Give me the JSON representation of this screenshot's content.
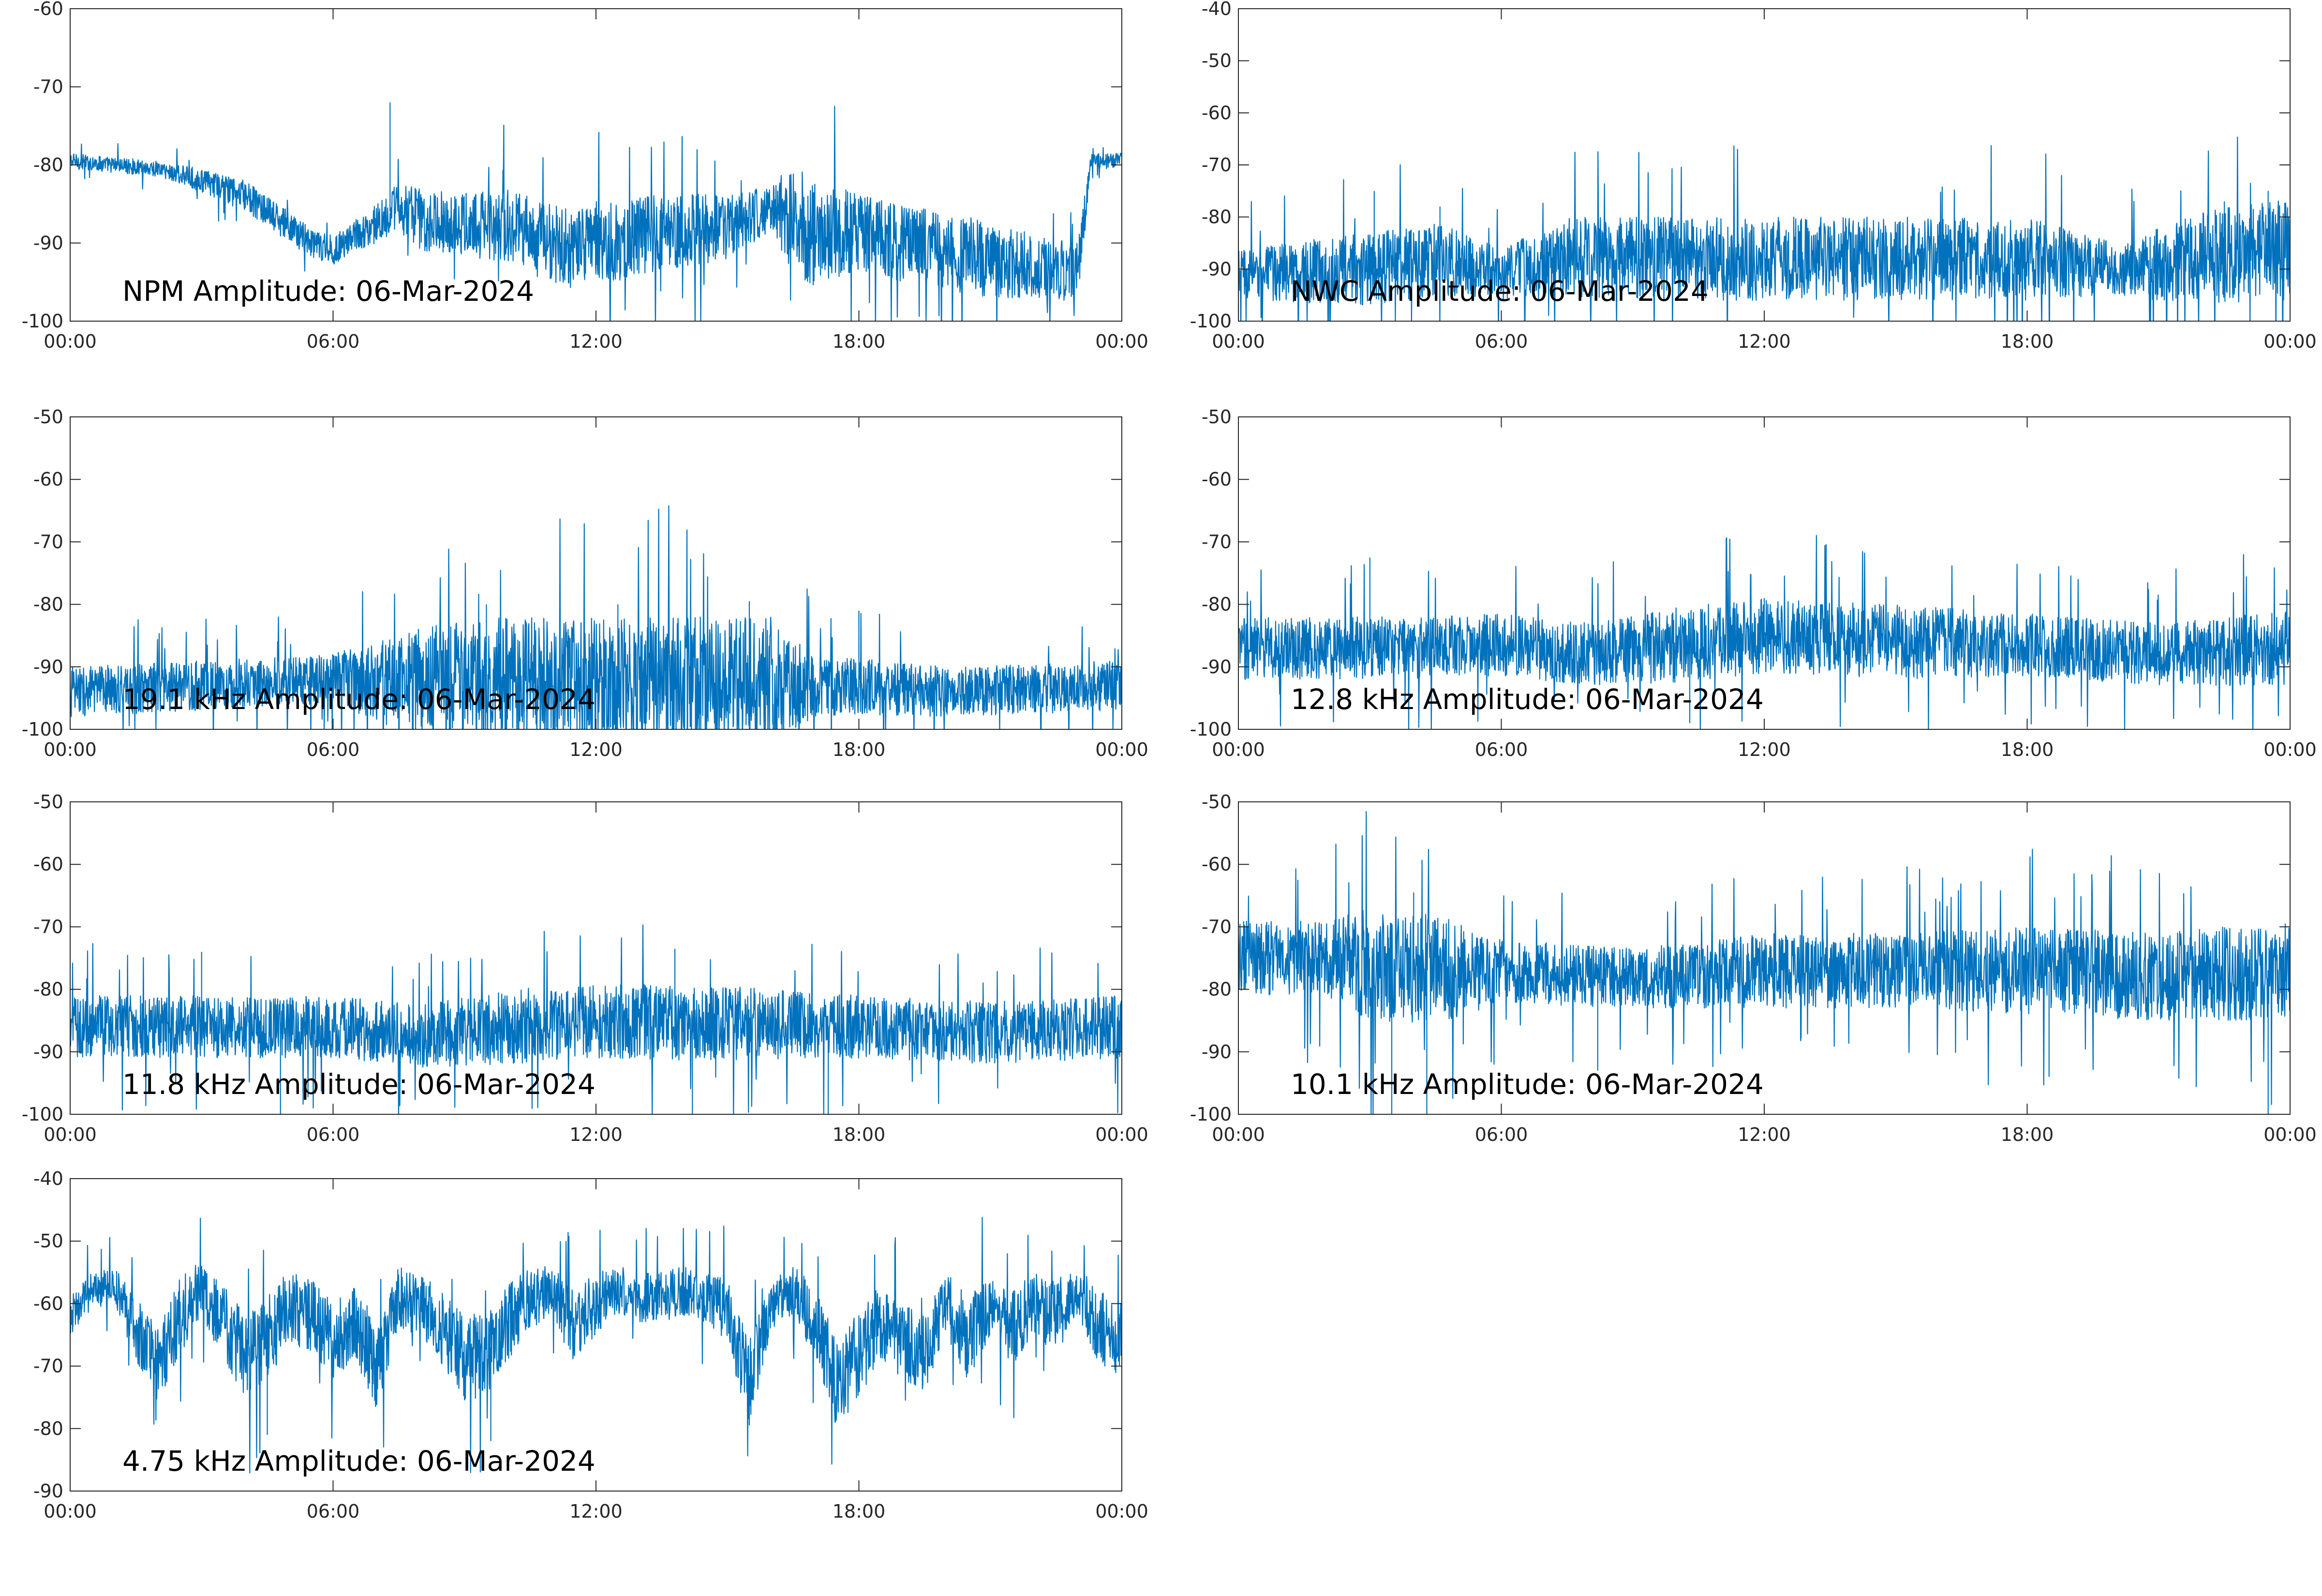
{
  "figure": {
    "line_color": "#0072BD",
    "axes_color": "#262626",
    "background": "#ffffff"
  },
  "chart_data": [
    {
      "type": "line",
      "title": "NPM Amplitude: 06-Mar-2024",
      "xlabel": "",
      "ylabel": "",
      "xlim": [
        0,
        24
      ],
      "ylim": [
        -100,
        -60
      ],
      "x_ticks": [
        "00:00",
        "06:00",
        "12:00",
        "18:00",
        "00:00"
      ],
      "y_ticks": [
        "-60",
        "-70",
        "-80",
        "-90",
        "-100"
      ],
      "series": [
        {
          "x": [
            0,
            1,
            2,
            3,
            4,
            5,
            5.5,
            6,
            6.5,
            7,
            7.3,
            7.5,
            8,
            9,
            10,
            11,
            11.5,
            12,
            12.5,
            13,
            14,
            15,
            16,
            16.5,
            17,
            18,
            19,
            20,
            21,
            22,
            23,
            23.3,
            24
          ],
          "y": [
            -79.5,
            -80,
            -80.5,
            -82,
            -84,
            -88,
            -90,
            -91,
            -89,
            -87.5,
            -86,
            -85.5,
            -87,
            -87.5,
            -88,
            -90,
            -91,
            -89.5,
            -90,
            -89,
            -88.5,
            -88,
            -85.5,
            -87,
            -89,
            -88.5,
            -90,
            -91,
            -92,
            -93,
            -93.5,
            -79.5,
            -79.5
          ],
          "noise": [
            1,
            1,
            1,
            1.5,
            2,
            2,
            2,
            2,
            2,
            2.5,
            3,
            3,
            4,
            4,
            5,
            5,
            5,
            5,
            5,
            5,
            5,
            4,
            3,
            7,
            7,
            5,
            5,
            5,
            5,
            4,
            4,
            1,
            1
          ],
          "spikes": [
            [
              7.3,
              -72
            ]
          ]
        }
      ],
      "grid": false
    },
    {
      "type": "line",
      "title": "NWC Amplitude: 06-Mar-2024",
      "xlabel": "",
      "ylabel": "",
      "xlim": [
        0,
        24
      ],
      "ylim": [
        -100,
        -40
      ],
      "x_ticks": [
        "00:00",
        "06:00",
        "12:00",
        "18:00",
        "00:00"
      ],
      "y_ticks": [
        "-40",
        "-50",
        "-60",
        "-70",
        "-80",
        "-90",
        "-100"
      ],
      "series": [
        {
          "x": [
            0,
            3,
            4.5,
            6,
            7.5,
            9,
            12,
            15,
            18,
            20,
            22,
            24
          ],
          "y": [
            -91,
            -90,
            -88,
            -91,
            -88,
            -88,
            -88,
            -88,
            -88,
            -90,
            -88,
            -86
          ],
          "noise": [
            5,
            7,
            7,
            5,
            8,
            8,
            8,
            8,
            8,
            5,
            9,
            10
          ],
          "spikes": [
            [
              3.1,
              -75
            ],
            [
              4.6,
              -78
            ],
            [
              22.5,
              -77
            ],
            [
              23.5,
              -75
            ]
          ]
        }
      ],
      "grid": false
    },
    {
      "type": "line",
      "title": "19.1 kHz Amplitude: 06-Mar-2024",
      "xlabel": "",
      "ylabel": "",
      "xlim": [
        0,
        24
      ],
      "ylim": [
        -100,
        -50
      ],
      "x_ticks": [
        "00:00",
        "06:00",
        "12:00",
        "18:00",
        "00:00"
      ],
      "y_ticks": [
        "-50",
        "-60",
        "-70",
        "-80",
        "-90",
        "-100"
      ],
      "series": [
        {
          "x": [
            0,
            3,
            6,
            7.5,
            10,
            13,
            16,
            17,
            20,
            24
          ],
          "y": [
            -94,
            -93,
            -92,
            -92,
            -92,
            -92,
            -92,
            -93,
            -94,
            -93
          ],
          "noise": [
            4,
            4,
            4,
            8,
            10,
            10,
            10,
            5,
            4,
            4
          ],
          "spikes": [
            [
              9.5,
              -80
            ],
            [
              12.5,
              -80
            ],
            [
              15.5,
              -79.5
            ],
            [
              18,
              -81
            ]
          ]
        }
      ],
      "grid": false
    },
    {
      "type": "line",
      "title": "12.8 kHz Amplitude: 06-Mar-2024",
      "xlabel": "",
      "ylabel": "",
      "xlim": [
        0,
        24
      ],
      "ylim": [
        -100,
        -50
      ],
      "x_ticks": [
        "00:00",
        "06:00",
        "12:00",
        "18:00",
        "00:00"
      ],
      "y_ticks": [
        "-50",
        "-60",
        "-70",
        "-80",
        "-90",
        "-100"
      ],
      "series": [
        {
          "x": [
            0,
            3,
            6,
            8,
            10,
            12,
            15,
            18,
            21,
            24
          ],
          "y": [
            -87,
            -87,
            -86.5,
            -88,
            -86.5,
            -85,
            -86,
            -86.5,
            -88,
            -87
          ],
          "noise": [
            5,
            5,
            5,
            5,
            6,
            6,
            6,
            5,
            5,
            6
          ],
          "spikes": [
            [
              3,
              -72.5
            ],
            [
              12,
              -79
            ],
            [
              10.3,
              -99
            ]
          ]
        }
      ],
      "grid": false
    },
    {
      "type": "line",
      "title": "11.8 kHz Amplitude: 06-Mar-2024",
      "xlabel": "",
      "ylabel": "",
      "xlim": [
        0,
        24
      ],
      "ylim": [
        -100,
        -50
      ],
      "x_ticks": [
        "00:00",
        "06:00",
        "12:00",
        "18:00",
        "00:00"
      ],
      "y_ticks": [
        "-50",
        "-60",
        "-70",
        "-80",
        "-90",
        "-100"
      ],
      "series": [
        {
          "x": [
            0,
            3,
            6,
            8,
            10,
            12,
            15,
            18,
            21,
            24
          ],
          "y": [
            -86,
            -86,
            -86,
            -87.5,
            -86,
            -85,
            -85.5,
            -86,
            -87,
            -86
          ],
          "noise": [
            5,
            5,
            5,
            5,
            6,
            6,
            6,
            5,
            5,
            5
          ],
          "spikes": [
            [
              3,
              -74
            ],
            [
              13.8,
              -73.5
            ],
            [
              4.8,
              -100
            ],
            [
              14.2,
              -100
            ],
            [
              17.3,
              -100
            ]
          ]
        }
      ],
      "grid": false
    },
    {
      "type": "line",
      "title": "10.1 kHz Amplitude: 06-Mar-2024",
      "xlabel": "",
      "ylabel": "",
      "xlim": [
        0,
        24
      ],
      "ylim": [
        -100,
        -50
      ],
      "x_ticks": [
        "00:00",
        "06:00",
        "12:00",
        "18:00",
        "00:00"
      ],
      "y_ticks": [
        "-50",
        "-60",
        "-70",
        "-80",
        "-90",
        "-100"
      ],
      "series": [
        {
          "x": [
            0,
            2,
            3,
            4.5,
            6,
            8,
            10,
            12,
            15,
            18,
            21,
            24
          ],
          "y": [
            -75,
            -75,
            -76,
            -77,
            -77,
            -78,
            -78,
            -77,
            -77,
            -77,
            -78,
            -77
          ],
          "noise": [
            6,
            6,
            9,
            9,
            5,
            5,
            5,
            6,
            6,
            7,
            7,
            8
          ],
          "spikes": [
            [
              4,
              -64.5
            ],
            [
              3.5,
              -100
            ],
            [
              4.3,
              -100
            ],
            [
              8.2,
              -93
            ],
            [
              18.5,
              -94
            ],
            [
              23.5,
              -100
            ]
          ]
        }
      ],
      "grid": false
    },
    {
      "type": "line",
      "title": "4.75 kHz Amplitude: 06-Mar-2024",
      "xlabel": "",
      "ylabel": "",
      "xlim": [
        0,
        24
      ],
      "ylim": [
        -90,
        -40
      ],
      "x_ticks": [
        "00:00",
        "06:00",
        "12:00",
        "18:00",
        "00:00"
      ],
      "y_ticks": [
        "-40",
        "-50",
        "-60",
        "-70",
        "-80",
        "-90"
      ],
      "series": [
        {
          "x": [
            0,
            0.5,
            1,
            1.5,
            2,
            2.5,
            3,
            3.5,
            4,
            4.5,
            5,
            5.5,
            6,
            6.5,
            7,
            7.5,
            8,
            8.5,
            9,
            9.5,
            10,
            10.5,
            11,
            11.5,
            12,
            12.5,
            13,
            13.5,
            14,
            14.5,
            15,
            15.5,
            16,
            16.5,
            17,
            17.5,
            18,
            18.5,
            19,
            19.5,
            20,
            20.5,
            21,
            21.5,
            22,
            22.5,
            23,
            23.5,
            24
          ],
          "y": [
            -62,
            -58,
            -57,
            -64,
            -70,
            -62,
            -58,
            -63,
            -68,
            -66,
            -60,
            -62,
            -66,
            -63,
            -70,
            -59,
            -60,
            -64,
            -69,
            -68,
            -63,
            -59,
            -58,
            -64,
            -60,
            -58,
            -59,
            -59,
            -58,
            -59,
            -61,
            -73,
            -60,
            -58,
            -63,
            -73,
            -68,
            -63,
            -66,
            -68,
            -60,
            -66,
            -60,
            -64,
            -60,
            -62,
            -58,
            -64,
            -66
          ],
          "noise": [
            3,
            3,
            3,
            5,
            6,
            6,
            5,
            6,
            7,
            7,
            6,
            6,
            6,
            6,
            7,
            5,
            5,
            6,
            7,
            7,
            6,
            5,
            4,
            6,
            5,
            4,
            4,
            4,
            4,
            4,
            5,
            7,
            4,
            4,
            6,
            7,
            7,
            6,
            6,
            6,
            5,
            7,
            5,
            6,
            5,
            6,
            4,
            6,
            6
          ],
          "spikes": [
            [
              4.5,
              -81
            ],
            [
              9.6,
              -82
            ],
            [
              15.5,
              -79.5
            ],
            [
              3,
              -54
            ]
          ]
        }
      ],
      "grid": false
    }
  ]
}
